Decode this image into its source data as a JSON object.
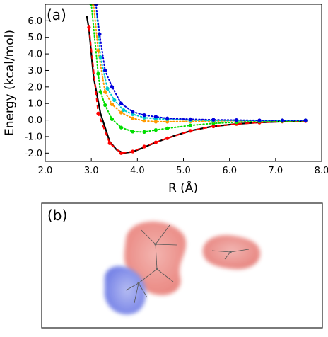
{
  "panel_a": {
    "label": "(a)"
  },
  "panel_b": {
    "label": "(b)"
  },
  "chart_data": {
    "type": "line",
    "xlabel": "R (Å)",
    "ylabel": "Energy (kcal/mol)",
    "xlim": [
      2.0,
      8.0
    ],
    "ylim": [
      -2.5,
      7.0
    ],
    "x_ticks": [
      "2.0",
      "3.0",
      "4.0",
      "5.0",
      "6.0",
      "7.0",
      "8.0"
    ],
    "y_ticks": [
      "-2.0",
      "-1.0",
      "0.0",
      "1.0",
      "2.0",
      "3.0",
      "4.0",
      "5.0",
      "6.0"
    ],
    "grid": false,
    "series": [
      {
        "color": "#000000",
        "style": "solid",
        "markers": false,
        "points": [
          [
            2.9,
            6.3
          ],
          [
            2.95,
            5.5
          ],
          [
            3.05,
            2.6
          ],
          [
            3.2,
            0.4
          ],
          [
            3.4,
            -1.3
          ],
          [
            3.55,
            -1.8
          ],
          [
            3.7,
            -2.0
          ],
          [
            3.9,
            -1.92
          ],
          [
            4.1,
            -1.7
          ],
          [
            4.4,
            -1.35
          ],
          [
            4.8,
            -0.95
          ],
          [
            5.2,
            -0.62
          ],
          [
            5.6,
            -0.4
          ],
          [
            6.1,
            -0.25
          ],
          [
            6.6,
            -0.15
          ],
          [
            7.1,
            -0.1
          ],
          [
            7.6,
            -0.07
          ]
        ]
      },
      {
        "color": "#ff0000",
        "style": "dashed",
        "markers": true,
        "points": [
          [
            2.95,
            5.6
          ],
          [
            3.15,
            0.4
          ],
          [
            3.4,
            -1.4
          ],
          [
            3.65,
            -2.0
          ],
          [
            3.9,
            -1.9
          ],
          [
            4.15,
            -1.6
          ],
          [
            4.4,
            -1.35
          ],
          [
            4.65,
            -1.1
          ],
          [
            5.15,
            -0.65
          ],
          [
            5.65,
            -0.38
          ],
          [
            6.15,
            -0.24
          ],
          [
            6.65,
            -0.15
          ],
          [
            7.15,
            -0.09
          ],
          [
            7.65,
            -0.06
          ]
        ]
      },
      {
        "color": "#00dd00",
        "style": "dotted",
        "markers": true,
        "points": [
          [
            3.0,
            7.0
          ],
          [
            3.15,
            2.8
          ],
          [
            3.2,
            1.7
          ],
          [
            3.3,
            0.9
          ],
          [
            3.45,
            0.05
          ],
          [
            3.65,
            -0.45
          ],
          [
            3.9,
            -0.7
          ],
          [
            4.15,
            -0.72
          ],
          [
            4.4,
            -0.6
          ],
          [
            4.65,
            -0.5
          ],
          [
            5.15,
            -0.32
          ],
          [
            5.65,
            -0.2
          ],
          [
            6.15,
            -0.13
          ],
          [
            6.65,
            -0.08
          ],
          [
            7.15,
            -0.06
          ],
          [
            7.65,
            -0.04
          ]
        ]
      },
      {
        "color": "#ff9900",
        "style": "dotted",
        "markers": true,
        "points": [
          [
            3.05,
            7.0
          ],
          [
            3.15,
            4.2
          ],
          [
            3.3,
            1.7
          ],
          [
            3.45,
            0.95
          ],
          [
            3.65,
            0.45
          ],
          [
            3.9,
            0.1
          ],
          [
            4.15,
            -0.05
          ],
          [
            4.4,
            -0.1
          ],
          [
            4.65,
            -0.1
          ],
          [
            5.15,
            -0.08
          ],
          [
            5.65,
            -0.06
          ],
          [
            6.15,
            -0.04
          ],
          [
            6.65,
            -0.03
          ],
          [
            7.15,
            -0.02
          ],
          [
            7.65,
            -0.02
          ]
        ]
      },
      {
        "color": "#00cccc",
        "style": "dotted",
        "markers": true,
        "points": [
          [
            3.1,
            7.0
          ],
          [
            3.2,
            3.8
          ],
          [
            3.35,
            1.9
          ],
          [
            3.5,
            1.2
          ],
          [
            3.7,
            0.6
          ],
          [
            3.9,
            0.35
          ],
          [
            4.15,
            0.15
          ],
          [
            4.4,
            0.08
          ],
          [
            4.65,
            0.05
          ],
          [
            5.15,
            0.0
          ],
          [
            5.65,
            -0.03
          ],
          [
            6.15,
            -0.03
          ],
          [
            6.65,
            -0.03
          ],
          [
            7.15,
            -0.02
          ],
          [
            7.65,
            -0.02
          ]
        ]
      },
      {
        "color": "#0000dd",
        "style": "dotted",
        "markers": true,
        "points": [
          [
            3.1,
            7.0
          ],
          [
            3.18,
            5.2
          ],
          [
            3.3,
            3.0
          ],
          [
            3.45,
            2.0
          ],
          [
            3.65,
            1.0
          ],
          [
            3.9,
            0.5
          ],
          [
            4.15,
            0.3
          ],
          [
            4.4,
            0.2
          ],
          [
            4.65,
            0.1
          ],
          [
            5.15,
            0.05
          ],
          [
            5.65,
            0.02
          ],
          [
            6.15,
            0.0
          ],
          [
            6.65,
            -0.02
          ],
          [
            7.15,
            -0.02
          ],
          [
            7.65,
            -0.02
          ]
        ]
      }
    ]
  }
}
